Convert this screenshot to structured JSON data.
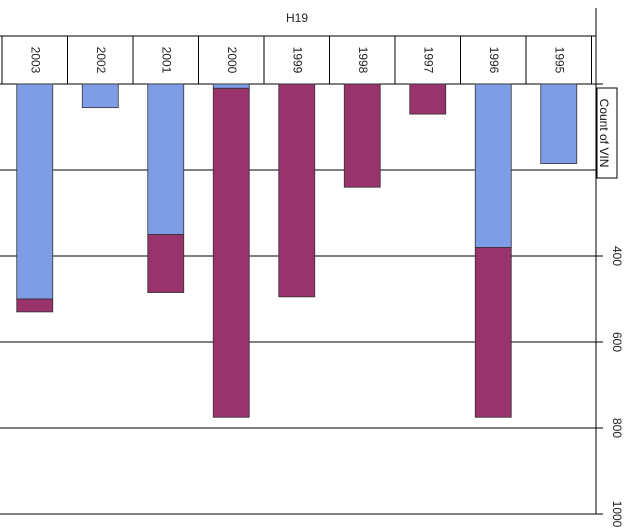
{
  "chart_data": {
    "type": "bar",
    "orientation": "vertical-downward",
    "stacked": true,
    "title": "H19",
    "ylabel": "Count of VIN",
    "categories": [
      "2003",
      "2002",
      "2001",
      "2000",
      "1999",
      "1998",
      "1997",
      "1996",
      "1995"
    ],
    "series": [
      {
        "color": "#7f9ce6",
        "values": [
          500,
          55,
          350,
          10,
          0,
          0,
          0,
          380,
          185
        ]
      },
      {
        "color": "#99336b",
        "values": [
          30,
          0,
          135,
          765,
          495,
          240,
          70,
          395,
          0
        ]
      }
    ],
    "ylim": [
      0,
      1000
    ],
    "yticks": [
      {
        "value": 400,
        "label": "400"
      },
      {
        "value": 600,
        "label": "600"
      },
      {
        "value": 800,
        "label": "800"
      },
      {
        "value": 1000,
        "label": "1000"
      }
    ],
    "grid": true,
    "legend": "none"
  }
}
